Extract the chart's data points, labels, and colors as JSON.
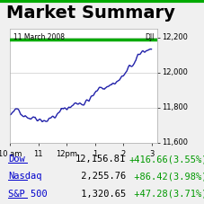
{
  "title": "Market Summary",
  "chart_date": "11 March 2008",
  "chart_label": "DJI",
  "background_color": "#f0f0f0",
  "chart_bg_color": "#ffffff",
  "header_bg": "#e8e8e8",
  "ylim": [
    11600,
    12250
  ],
  "yticks": [
    11600,
    11800,
    12000,
    12200
  ],
  "xtick_labels": [
    "10 am",
    "11",
    "12pm",
    "1",
    "2",
    "3"
  ],
  "green_line_y": 12200,
  "indices": [
    {
      "name": "Dow",
      "value": "12,156.81",
      "change": "+416.66(3.55%)",
      "link_color": "#0000cc",
      "change_color": "#009900"
    },
    {
      "name": "Nasdaq",
      "value": " 2,255.76",
      "change": " +86.42(3.98%)",
      "link_color": "#0000cc",
      "change_color": "#009900"
    },
    {
      "name": "S&P 500",
      "value": " 1,320.65",
      "change": " +47.28(3.71%)",
      "link_color": "#0000cc",
      "change_color": "#009900"
    }
  ],
  "line_color": "#2222aa",
  "line_width": 1.0,
  "grid_color": "#cccccc",
  "title_fontsize": 14,
  "axis_fontsize": 6,
  "index_fontsize": 7.5
}
